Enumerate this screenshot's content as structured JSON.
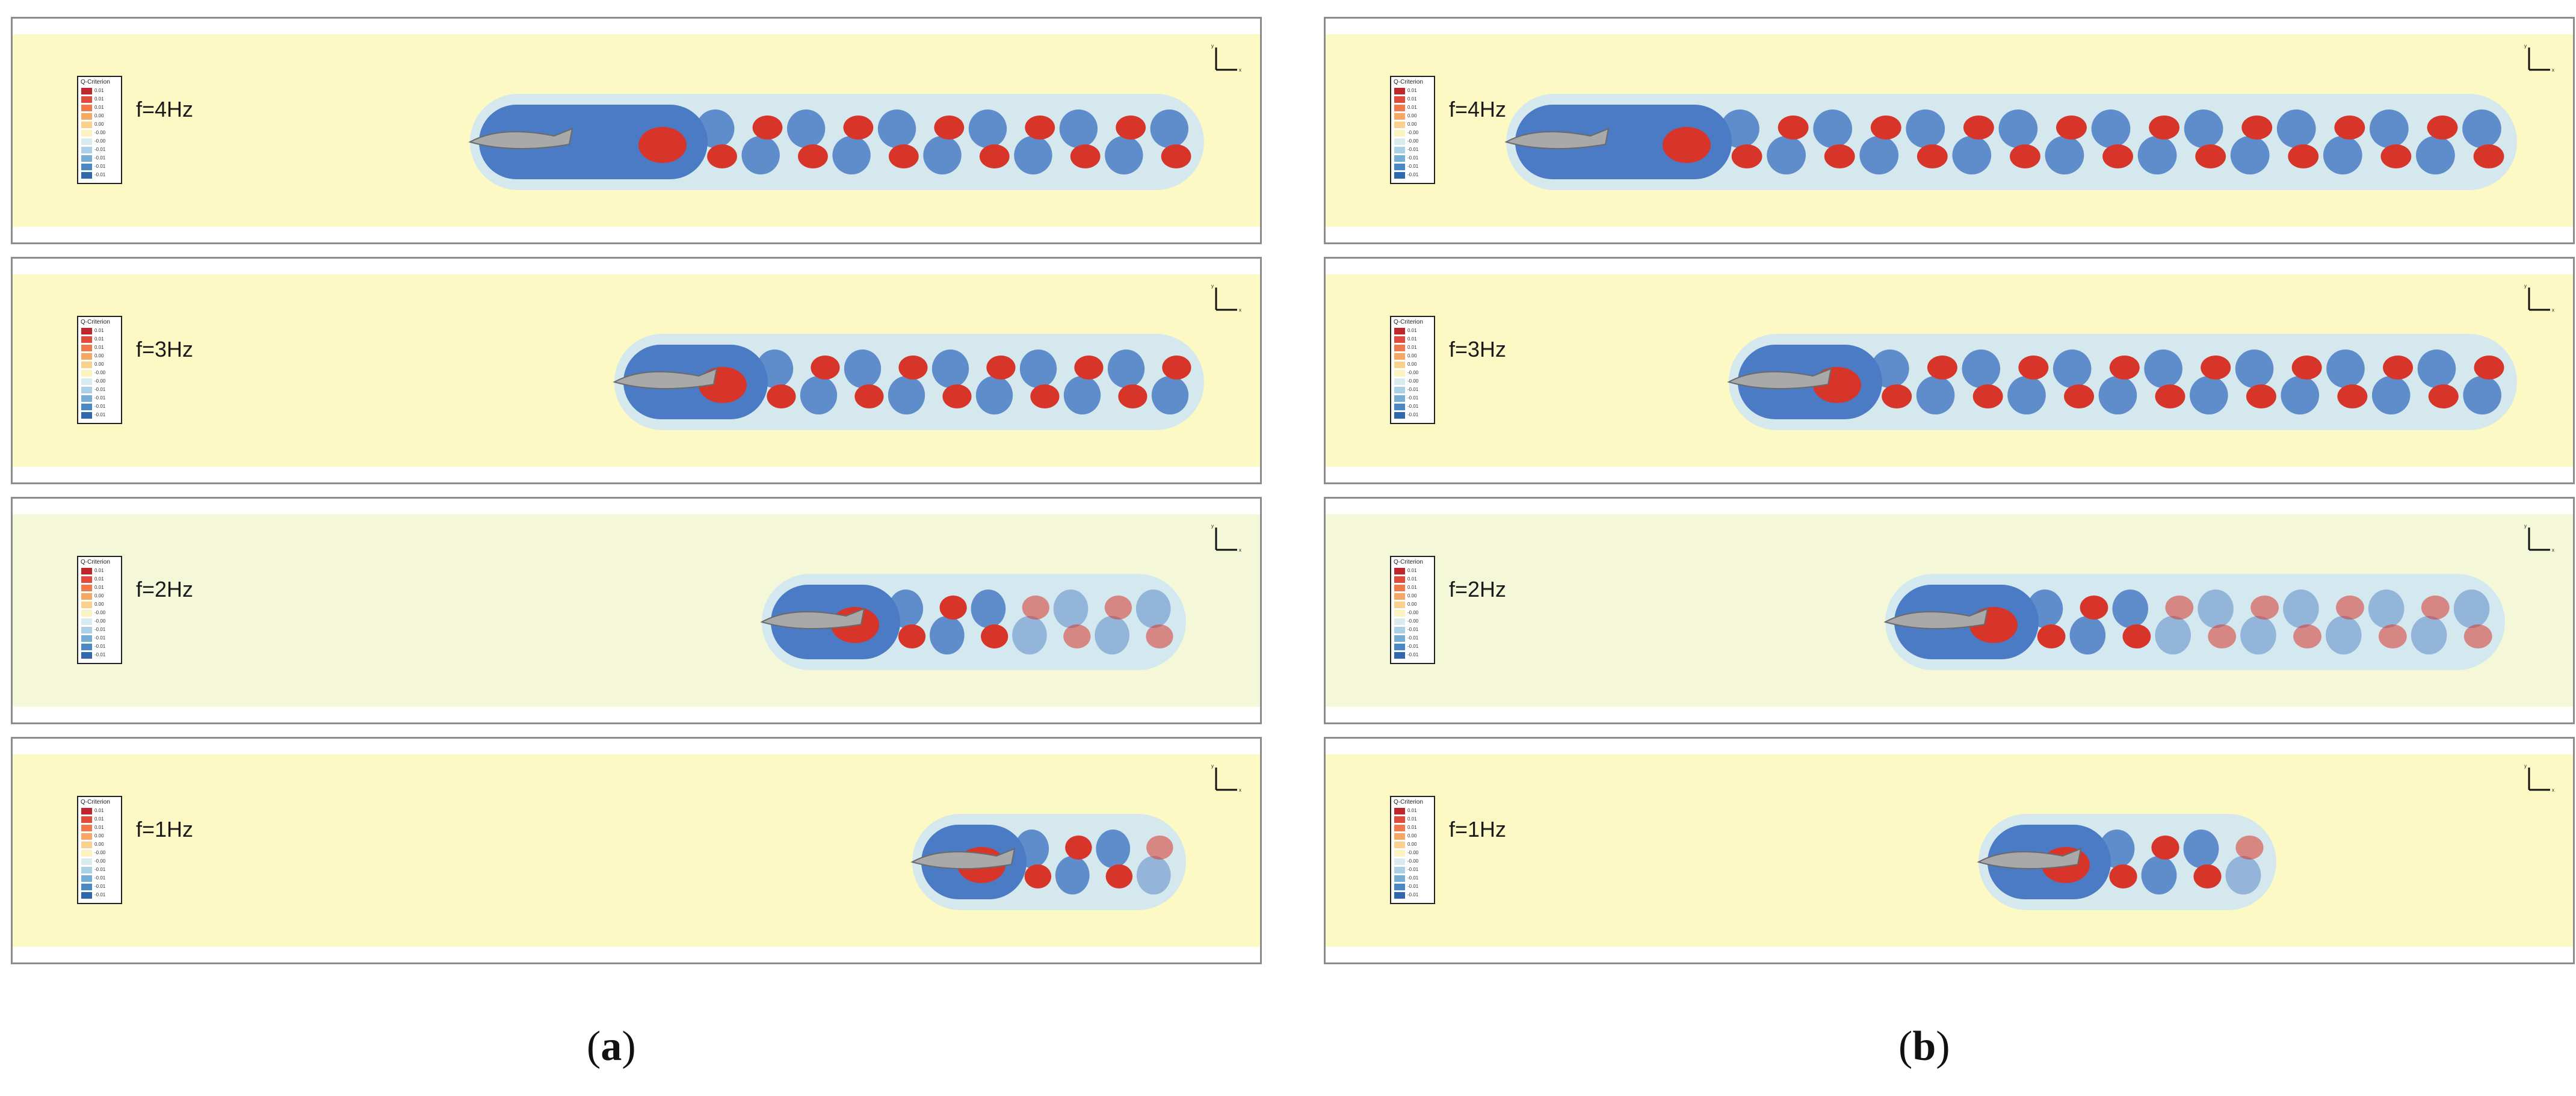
{
  "columns": [
    {
      "caption_open": "(",
      "caption_letter": "a",
      "caption_close": ")"
    },
    {
      "caption_open": "(",
      "caption_letter": "b",
      "caption_close": ")"
    }
  ],
  "rows": [
    {
      "freq_label": "f=4Hz"
    },
    {
      "freq_label": "f=3Hz"
    },
    {
      "freq_label": "f=2Hz"
    },
    {
      "freq_label": "f=1Hz"
    }
  ],
  "legend": {
    "title": "Q-Criterion",
    "levels": [
      "0.01",
      "0.01",
      "0.01",
      "0.00",
      "0.00",
      "-0.00",
      "-0.00",
      "-0.01",
      "-0.01",
      "-0.01",
      "-0.01"
    ],
    "colors": [
      "#c0272d",
      "#e04a3a",
      "#f0784a",
      "#f6a764",
      "#f9d08c",
      "#fbf2bf",
      "#d8ecf0",
      "#a9d0e6",
      "#76aed6",
      "#4a88c4",
      "#2f68ac"
    ]
  },
  "axis_tick_labels": {
    "vertical": "y",
    "horizontal": "x"
  },
  "colors": {
    "background_field": "#fdf9c4",
    "background_field_2hz": "#f4f8d8",
    "vortex_blue": "#4a7bc4",
    "vortex_red": "#d8352a",
    "halo_light": "#cfe6f2",
    "fish_body": "#a9a9a9"
  }
}
